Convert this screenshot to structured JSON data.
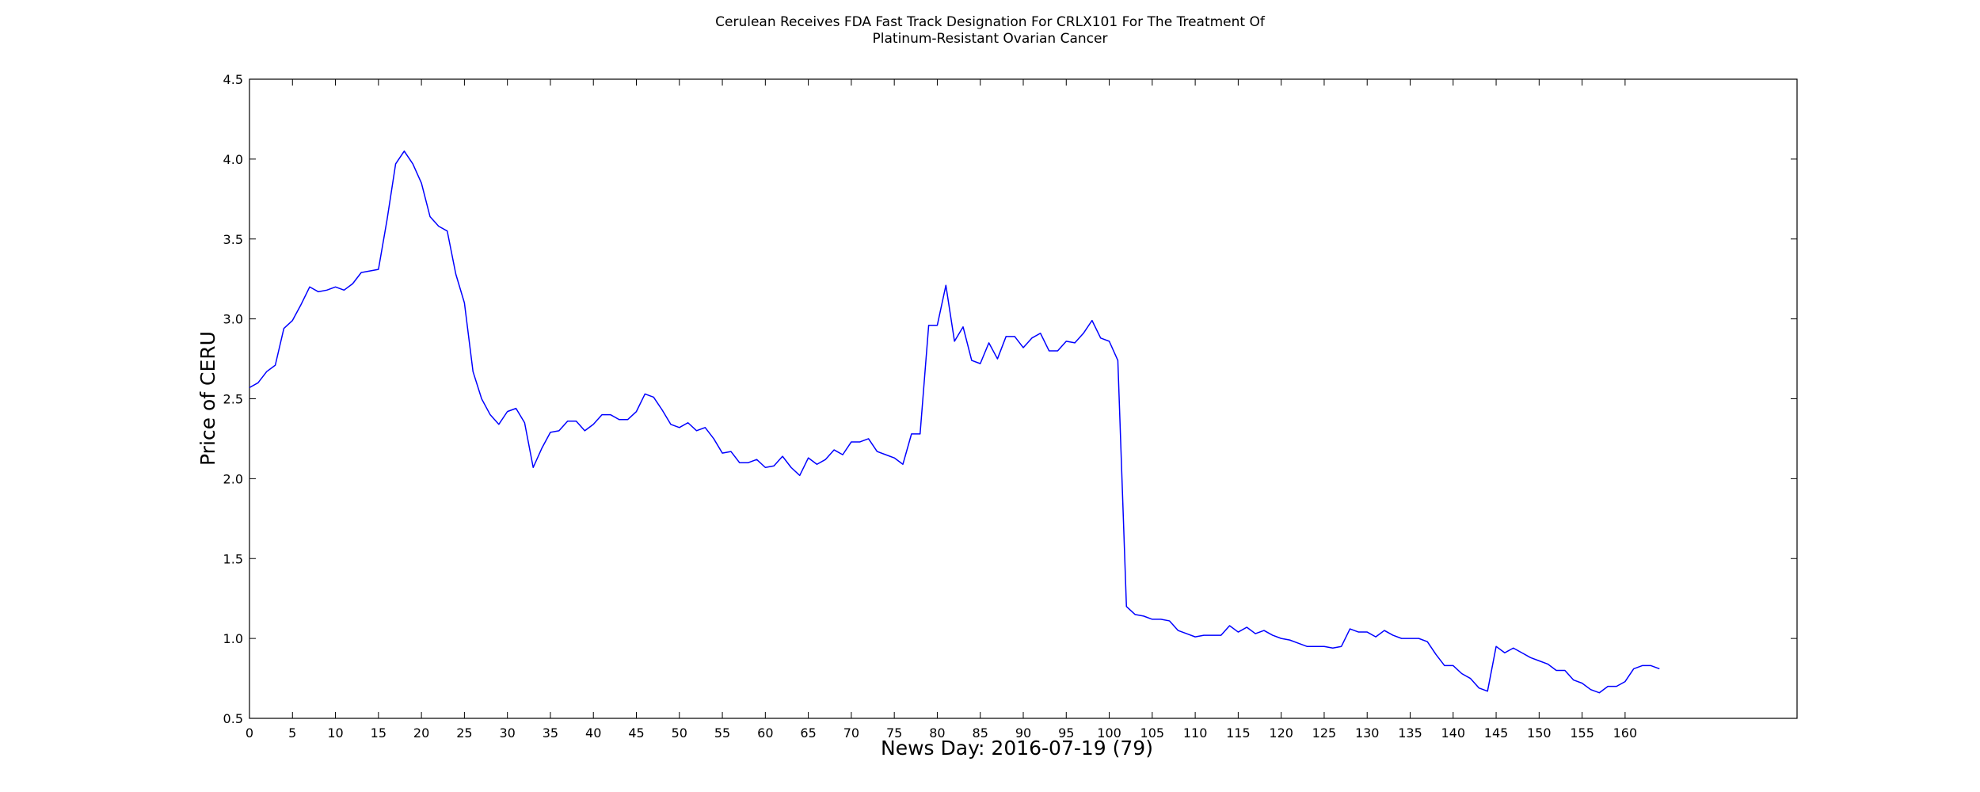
{
  "chart_data": {
    "type": "line",
    "title_lines": [
      "Cerulean Receives FDA Fast Track Designation For CRLX101 For The Treatment Of",
      "Platinum-Resistant Ovarian Cancer"
    ],
    "xlabel": "News Day: 2016-07-19 (79)",
    "ylabel": "Price of CERU",
    "xlim": [
      0,
      180
    ],
    "ylim": [
      0.5,
      4.5
    ],
    "x_ticks": [
      0,
      5,
      10,
      15,
      20,
      25,
      30,
      35,
      40,
      45,
      50,
      55,
      60,
      65,
      70,
      75,
      80,
      85,
      90,
      95,
      100,
      105,
      110,
      115,
      120,
      125,
      130,
      135,
      140,
      145,
      150,
      155,
      160
    ],
    "y_ticks": [
      "0.5",
      "1.0",
      "1.5",
      "2.0",
      "2.5",
      "3.0",
      "3.5",
      "4.0",
      "4.5"
    ],
    "grid": false,
    "line_color": "#0000ff",
    "series": [
      {
        "x": [
          0,
          1,
          2,
          3,
          4,
          5,
          6,
          7,
          8,
          9,
          10,
          11,
          12,
          13,
          14,
          15,
          16,
          17,
          18,
          19,
          20,
          21,
          22,
          23,
          24,
          25,
          26,
          27,
          28,
          29,
          30,
          31,
          32,
          33,
          34,
          35,
          36,
          37,
          38,
          39,
          40,
          41,
          42,
          43,
          44,
          45,
          46,
          47,
          48,
          49,
          50,
          51,
          52,
          53,
          54,
          55,
          56,
          57,
          58,
          59,
          60,
          61,
          62,
          63,
          64,
          65,
          66,
          67,
          68,
          69,
          70,
          71,
          72,
          73,
          74,
          75,
          76,
          77,
          78,
          79,
          80,
          81,
          82,
          83,
          84,
          85,
          86,
          87,
          88,
          89,
          90,
          91,
          92,
          93,
          94,
          95,
          96,
          97,
          98,
          99,
          100,
          101,
          102,
          103,
          104,
          105,
          106,
          107,
          108,
          109,
          110,
          111,
          112,
          113,
          114,
          115,
          116,
          117,
          118,
          119,
          120,
          121,
          122,
          123,
          124,
          125,
          126,
          127,
          128,
          129,
          130,
          131,
          132,
          133,
          134,
          135,
          136,
          137,
          138,
          139,
          140,
          141,
          142,
          143,
          144,
          145,
          146,
          147,
          148,
          149,
          150,
          151,
          152,
          153,
          154,
          155,
          156,
          157,
          158,
          159,
          160,
          161,
          162,
          163,
          164
        ],
        "values": [
          2.57,
          2.6,
          2.67,
          2.71,
          2.94,
          2.99,
          3.09,
          3.2,
          3.17,
          3.18,
          3.2,
          3.18,
          3.22,
          3.29,
          3.3,
          3.31,
          3.62,
          3.97,
          4.05,
          3.97,
          3.85,
          3.64,
          3.58,
          3.55,
          3.28,
          3.1,
          2.67,
          2.5,
          2.4,
          2.34,
          2.42,
          2.44,
          2.35,
          2.07,
          2.19,
          2.29,
          2.3,
          2.36,
          2.36,
          2.3,
          2.34,
          2.4,
          2.4,
          2.37,
          2.37,
          2.42,
          2.53,
          2.51,
          2.43,
          2.34,
          2.32,
          2.35,
          2.3,
          2.32,
          2.25,
          2.16,
          2.17,
          2.1,
          2.1,
          2.12,
          2.07,
          2.08,
          2.14,
          2.07,
          2.02,
          2.13,
          2.09,
          2.12,
          2.18,
          2.15,
          2.23,
          2.23,
          2.25,
          2.17,
          2.15,
          2.13,
          2.09,
          2.28,
          2.28,
          2.96,
          2.96,
          3.21,
          2.86,
          2.95,
          2.74,
          2.72,
          2.85,
          2.75,
          2.89,
          2.89,
          2.82,
          2.88,
          2.91,
          2.8,
          2.8,
          2.86,
          2.85,
          2.91,
          2.99,
          2.88,
          2.86,
          2.74,
          1.2,
          1.15,
          1.14,
          1.12,
          1.12,
          1.11,
          1.05,
          1.03,
          1.01,
          1.02,
          1.02,
          1.02,
          1.08,
          1.04,
          1.07,
          1.03,
          1.05,
          1.02,
          1.0,
          0.99,
          0.97,
          0.95,
          0.95,
          0.95,
          0.94,
          0.95,
          1.06,
          1.04,
          1.04,
          1.01,
          1.05,
          1.02,
          1.0,
          1.0,
          1.0,
          0.98,
          0.9,
          0.83,
          0.83,
          0.78,
          0.75,
          0.69,
          0.67,
          0.95,
          0.91,
          0.94,
          0.91,
          0.88,
          0.86,
          0.84,
          0.8,
          0.8,
          0.74,
          0.72,
          0.68,
          0.66,
          0.7,
          0.7,
          0.73,
          0.81,
          0.83,
          0.83,
          0.81
        ]
      }
    ]
  }
}
